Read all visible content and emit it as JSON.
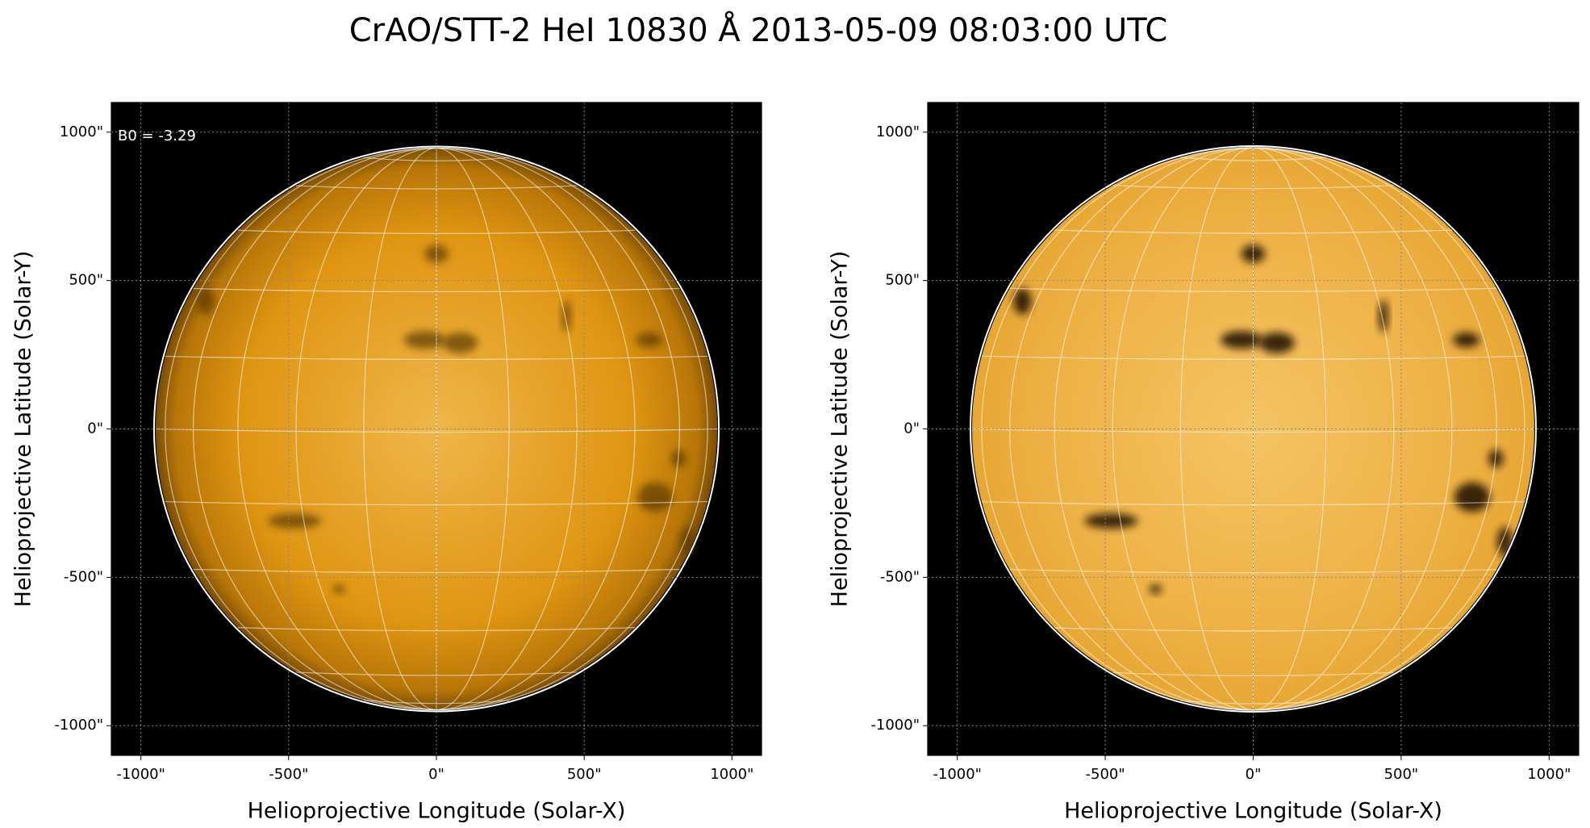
{
  "title": "CrAO/STT-2 HeI 10830 Å 2013-05-09 08:03:00 UTC",
  "chart_data": [
    {
      "type": "image",
      "annotation": "B0 = -3.29",
      "xlabel": "Helioprojective Longitude (Solar-X)",
      "ylabel": "Helioprojective Latitude (Solar-Y)",
      "xlim": [
        -1100,
        1100
      ],
      "ylim": [
        -1100,
        1100
      ],
      "xticks": [
        {
          "value": -1000,
          "label": "-1000\""
        },
        {
          "value": -500,
          "label": "-500\""
        },
        {
          "value": 0,
          "label": "0\""
        },
        {
          "value": 500,
          "label": "500\""
        },
        {
          "value": 1000,
          "label": "1000\""
        }
      ],
      "yticks": [
        {
          "value": -1000,
          "label": "-1000\""
        },
        {
          "value": -500,
          "label": "-500\""
        },
        {
          "value": 0,
          "label": "0\""
        },
        {
          "value": 500,
          "label": "500\""
        },
        {
          "value": 1000,
          "label": "1000\""
        }
      ],
      "grid": true
    },
    {
      "type": "image",
      "xlabel": "Helioprojective Longitude (Solar-X)",
      "ylabel": "Helioprojective Latitude (Solar-Y)",
      "xlim": [
        -1100,
        1100
      ],
      "ylim": [
        -1100,
        1100
      ],
      "xticks": [
        {
          "value": -1000,
          "label": "-1000\""
        },
        {
          "value": -500,
          "label": "-500\""
        },
        {
          "value": 0,
          "label": "0\""
        },
        {
          "value": 500,
          "label": "500\""
        },
        {
          "value": 1000,
          "label": "1000\""
        }
      ],
      "yticks": [
        {
          "value": -1000,
          "label": "-1000\""
        },
        {
          "value": -500,
          "label": "-500\""
        },
        {
          "value": 0,
          "label": "0\""
        },
        {
          "value": 500,
          "label": "500\""
        },
        {
          "value": 1000,
          "label": "1000\""
        }
      ],
      "grid": true
    }
  ]
}
